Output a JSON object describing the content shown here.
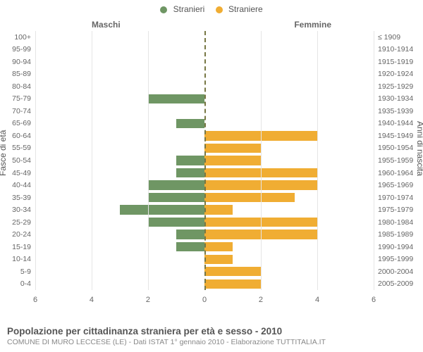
{
  "legend": {
    "male": {
      "label": "Stranieri",
      "color": "#6f9664"
    },
    "female": {
      "label": "Straniere",
      "color": "#f0ad33"
    }
  },
  "side_titles": {
    "left": "Maschi",
    "right": "Femmine"
  },
  "y_axis_titles": {
    "left": "Fasce di età",
    "right": "Anni di nascita"
  },
  "x_axis": {
    "max": 6,
    "ticks": [
      6,
      4,
      2,
      0,
      2,
      4,
      6
    ]
  },
  "colors": {
    "grid": "#e5e5e5",
    "center_line": "#777744",
    "text": "#666666",
    "background": "#ffffff"
  },
  "fontsize": {
    "labels": 10.5,
    "legend": 12,
    "ticks": 11,
    "title": 13.5,
    "subtitle": 10.5
  },
  "chart": {
    "type": "population-pyramid",
    "rows": [
      {
        "age": "100+",
        "birth": "≤ 1909",
        "m": 0,
        "f": 0
      },
      {
        "age": "95-99",
        "birth": "1910-1914",
        "m": 0,
        "f": 0
      },
      {
        "age": "90-94",
        "birth": "1915-1919",
        "m": 0,
        "f": 0
      },
      {
        "age": "85-89",
        "birth": "1920-1924",
        "m": 0,
        "f": 0
      },
      {
        "age": "80-84",
        "birth": "1925-1929",
        "m": 0,
        "f": 0
      },
      {
        "age": "75-79",
        "birth": "1930-1934",
        "m": 2,
        "f": 0
      },
      {
        "age": "70-74",
        "birth": "1935-1939",
        "m": 0,
        "f": 0
      },
      {
        "age": "65-69",
        "birth": "1940-1944",
        "m": 1,
        "f": 0
      },
      {
        "age": "60-64",
        "birth": "1945-1949",
        "m": 0,
        "f": 4
      },
      {
        "age": "55-59",
        "birth": "1950-1954",
        "m": 0,
        "f": 2
      },
      {
        "age": "50-54",
        "birth": "1955-1959",
        "m": 1,
        "f": 2
      },
      {
        "age": "45-49",
        "birth": "1960-1964",
        "m": 1,
        "f": 4
      },
      {
        "age": "40-44",
        "birth": "1965-1969",
        "m": 2,
        "f": 4
      },
      {
        "age": "35-39",
        "birth": "1970-1974",
        "m": 2,
        "f": 3.2
      },
      {
        "age": "30-34",
        "birth": "1975-1979",
        "m": 3,
        "f": 1
      },
      {
        "age": "25-29",
        "birth": "1980-1984",
        "m": 2,
        "f": 4
      },
      {
        "age": "20-24",
        "birth": "1985-1989",
        "m": 1,
        "f": 4
      },
      {
        "age": "15-19",
        "birth": "1990-1994",
        "m": 1,
        "f": 1
      },
      {
        "age": "10-14",
        "birth": "1995-1999",
        "m": 0,
        "f": 1
      },
      {
        "age": "5-9",
        "birth": "2000-2004",
        "m": 0,
        "f": 2
      },
      {
        "age": "0-4",
        "birth": "2005-2009",
        "m": 0,
        "f": 2
      }
    ]
  },
  "footer": {
    "title": "Popolazione per cittadinanza straniera per età e sesso - 2010",
    "subtitle": "COMUNE DI MURO LECCESE (LE) - Dati ISTAT 1° gennaio 2010 - Elaborazione TUTTITALIA.IT"
  }
}
